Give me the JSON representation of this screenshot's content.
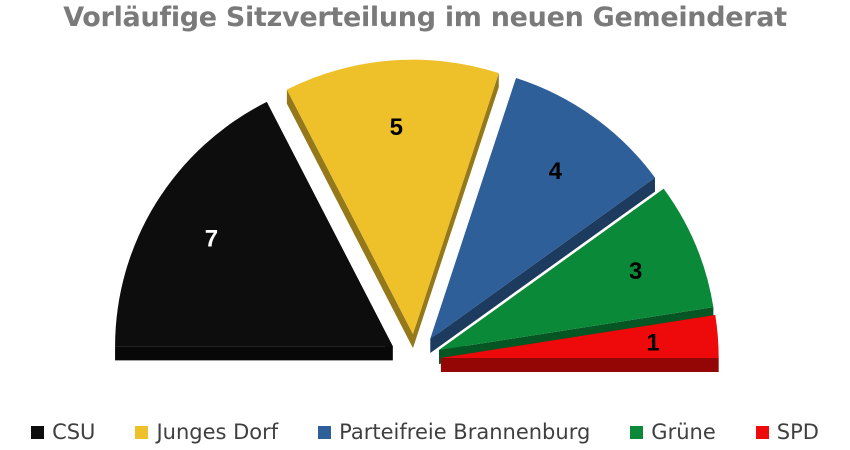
{
  "chart_data": {
    "type": "pie",
    "variant": "3d-exploded-semicircle",
    "title": "Vorläufige Sitzverteilung im neuen Gemeinderat",
    "series": [
      {
        "name": "CSU",
        "value": 7,
        "color": "#0d0d0d",
        "label_color": "#ffffff"
      },
      {
        "name": "Junges Dorf",
        "value": 5,
        "color": "#eec12a",
        "label_color": "#000000"
      },
      {
        "name": "Parteifreie Brannenburg",
        "value": 4,
        "color": "#2e5f98",
        "label_color": "#000000"
      },
      {
        "name": "Grüne",
        "value": 3,
        "color": "#0a8a38",
        "label_color": "#000000"
      },
      {
        "name": "SPD",
        "value": 1,
        "color": "#ee0a0a",
        "label_color": "#000000"
      }
    ],
    "legend_position": "bottom"
  }
}
